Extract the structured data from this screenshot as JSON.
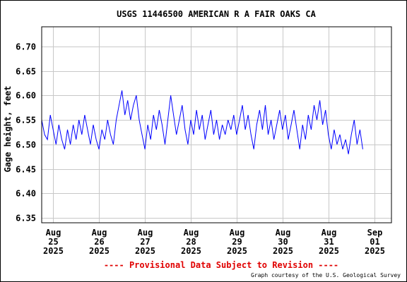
{
  "chart_data": {
    "type": "line",
    "title": "USGS 11446500 AMERICAN R A FAIR OAKS CA",
    "ylabel": "Gage height, feet",
    "xlabel": "",
    "ylim": [
      6.34,
      6.74
    ],
    "yticks": [
      6.35,
      6.4,
      6.45,
      6.5,
      6.55,
      6.6,
      6.65,
      6.7
    ],
    "ytick_labels": [
      "6.35",
      "6.40",
      "6.45",
      "6.50",
      "6.55",
      "6.60",
      "6.65",
      "6.70"
    ],
    "xlim": [
      "2025-08-24T18:00",
      "2025-09-01T09:00"
    ],
    "xticks": [
      {
        "date": "2025-08-25",
        "month": "Aug",
        "day": "25",
        "year": "2025"
      },
      {
        "date": "2025-08-26",
        "month": "Aug",
        "day": "26",
        "year": "2025"
      },
      {
        "date": "2025-08-27",
        "month": "Aug",
        "day": "27",
        "year": "2025"
      },
      {
        "date": "2025-08-28",
        "month": "Aug",
        "day": "28",
        "year": "2025"
      },
      {
        "date": "2025-08-29",
        "month": "Aug",
        "day": "29",
        "year": "2025"
      },
      {
        "date": "2025-08-30",
        "month": "Aug",
        "day": "30",
        "year": "2025"
      },
      {
        "date": "2025-08-31",
        "month": "Aug",
        "day": "31",
        "year": "2025"
      },
      {
        "date": "2025-09-01",
        "month": "Sep",
        "day": "01",
        "year": "2025"
      }
    ],
    "grid": true,
    "series": [
      {
        "name": "",
        "color": "#0000ff",
        "points": [
          [
            "2025-08-24T18:00",
            6.55
          ],
          [
            "2025-08-24T19:30",
            6.52
          ],
          [
            "2025-08-24T21:00",
            6.51
          ],
          [
            "2025-08-24T22:30",
            6.56
          ],
          [
            "2025-08-25T00:00",
            6.53
          ],
          [
            "2025-08-25T01:30",
            6.5
          ],
          [
            "2025-08-25T03:00",
            6.54
          ],
          [
            "2025-08-25T04:30",
            6.51
          ],
          [
            "2025-08-25T06:00",
            6.49
          ],
          [
            "2025-08-25T07:30",
            6.53
          ],
          [
            "2025-08-25T09:00",
            6.5
          ],
          [
            "2025-08-25T10:30",
            6.54
          ],
          [
            "2025-08-25T12:00",
            6.51
          ],
          [
            "2025-08-25T13:30",
            6.55
          ],
          [
            "2025-08-25T15:00",
            6.52
          ],
          [
            "2025-08-25T16:30",
            6.56
          ],
          [
            "2025-08-25T18:00",
            6.53
          ],
          [
            "2025-08-25T19:30",
            6.5
          ],
          [
            "2025-08-25T21:00",
            6.54
          ],
          [
            "2025-08-25T22:30",
            6.51
          ],
          [
            "2025-08-26T00:00",
            6.49
          ],
          [
            "2025-08-26T01:30",
            6.53
          ],
          [
            "2025-08-26T03:00",
            6.51
          ],
          [
            "2025-08-26T04:30",
            6.55
          ],
          [
            "2025-08-26T06:00",
            6.52
          ],
          [
            "2025-08-26T07:30",
            6.5
          ],
          [
            "2025-08-26T09:00",
            6.55
          ],
          [
            "2025-08-26T10:30",
            6.58
          ],
          [
            "2025-08-26T12:00",
            6.61
          ],
          [
            "2025-08-26T13:30",
            6.56
          ],
          [
            "2025-08-26T15:00",
            6.59
          ],
          [
            "2025-08-26T16:30",
            6.55
          ],
          [
            "2025-08-26T18:00",
            6.58
          ],
          [
            "2025-08-26T19:30",
            6.6
          ],
          [
            "2025-08-26T21:00",
            6.55
          ],
          [
            "2025-08-26T22:30",
            6.52
          ],
          [
            "2025-08-27T00:00",
            6.49
          ],
          [
            "2025-08-27T01:30",
            6.54
          ],
          [
            "2025-08-27T03:00",
            6.51
          ],
          [
            "2025-08-27T04:30",
            6.56
          ],
          [
            "2025-08-27T06:00",
            6.53
          ],
          [
            "2025-08-27T07:30",
            6.57
          ],
          [
            "2025-08-27T09:00",
            6.54
          ],
          [
            "2025-08-27T10:30",
            6.5
          ],
          [
            "2025-08-27T12:00",
            6.55
          ],
          [
            "2025-08-27T13:30",
            6.6
          ],
          [
            "2025-08-27T15:00",
            6.56
          ],
          [
            "2025-08-27T16:30",
            6.52
          ],
          [
            "2025-08-27T18:00",
            6.55
          ],
          [
            "2025-08-27T19:30",
            6.58
          ],
          [
            "2025-08-27T21:00",
            6.53
          ],
          [
            "2025-08-27T22:30",
            6.5
          ],
          [
            "2025-08-28T00:00",
            6.55
          ],
          [
            "2025-08-28T01:30",
            6.52
          ],
          [
            "2025-08-28T03:00",
            6.57
          ],
          [
            "2025-08-28T04:30",
            6.53
          ],
          [
            "2025-08-28T06:00",
            6.56
          ],
          [
            "2025-08-28T07:30",
            6.51
          ],
          [
            "2025-08-28T09:00",
            6.54
          ],
          [
            "2025-08-28T10:30",
            6.57
          ],
          [
            "2025-08-28T12:00",
            6.52
          ],
          [
            "2025-08-28T13:30",
            6.55
          ],
          [
            "2025-08-28T15:00",
            6.51
          ],
          [
            "2025-08-28T16:30",
            6.54
          ],
          [
            "2025-08-28T18:00",
            6.52
          ],
          [
            "2025-08-28T19:30",
            6.55
          ],
          [
            "2025-08-28T21:00",
            6.53
          ],
          [
            "2025-08-28T22:30",
            6.56
          ],
          [
            "2025-08-29T00:00",
            6.52
          ],
          [
            "2025-08-29T01:30",
            6.55
          ],
          [
            "2025-08-29T03:00",
            6.58
          ],
          [
            "2025-08-29T04:30",
            6.53
          ],
          [
            "2025-08-29T06:00",
            6.56
          ],
          [
            "2025-08-29T07:30",
            6.52
          ],
          [
            "2025-08-29T09:00",
            6.49
          ],
          [
            "2025-08-29T10:30",
            6.54
          ],
          [
            "2025-08-29T12:00",
            6.57
          ],
          [
            "2025-08-29T13:30",
            6.53
          ],
          [
            "2025-08-29T15:00",
            6.58
          ],
          [
            "2025-08-29T16:30",
            6.52
          ],
          [
            "2025-08-29T18:00",
            6.55
          ],
          [
            "2025-08-29T19:30",
            6.51
          ],
          [
            "2025-08-29T21:00",
            6.54
          ],
          [
            "2025-08-29T22:30",
            6.57
          ],
          [
            "2025-08-30T00:00",
            6.53
          ],
          [
            "2025-08-30T01:30",
            6.56
          ],
          [
            "2025-08-30T03:00",
            6.51
          ],
          [
            "2025-08-30T04:30",
            6.54
          ],
          [
            "2025-08-30T06:00",
            6.57
          ],
          [
            "2025-08-30T07:30",
            6.53
          ],
          [
            "2025-08-30T09:00",
            6.49
          ],
          [
            "2025-08-30T10:30",
            6.54
          ],
          [
            "2025-08-30T12:00",
            6.51
          ],
          [
            "2025-08-30T13:30",
            6.56
          ],
          [
            "2025-08-30T15:00",
            6.53
          ],
          [
            "2025-08-30T16:30",
            6.58
          ],
          [
            "2025-08-30T18:00",
            6.55
          ],
          [
            "2025-08-30T19:30",
            6.59
          ],
          [
            "2025-08-30T21:00",
            6.54
          ],
          [
            "2025-08-30T22:30",
            6.57
          ],
          [
            "2025-08-31T00:00",
            6.52
          ],
          [
            "2025-08-31T01:30",
            6.49
          ],
          [
            "2025-08-31T03:00",
            6.53
          ],
          [
            "2025-08-31T04:30",
            6.5
          ],
          [
            "2025-08-31T06:00",
            6.52
          ],
          [
            "2025-08-31T07:30",
            6.49
          ],
          [
            "2025-08-31T09:00",
            6.51
          ],
          [
            "2025-08-31T10:30",
            6.48
          ],
          [
            "2025-08-31T12:00",
            6.52
          ],
          [
            "2025-08-31T13:30",
            6.55
          ],
          [
            "2025-08-31T15:00",
            6.5
          ],
          [
            "2025-08-31T16:30",
            6.53
          ],
          [
            "2025-08-31T18:00",
            6.49
          ]
        ]
      }
    ]
  },
  "footer": {
    "provisional": "---- Provisional Data Subject to Revision ----",
    "credit": "Graph courtesy of the U.S. Geological Survey"
  }
}
